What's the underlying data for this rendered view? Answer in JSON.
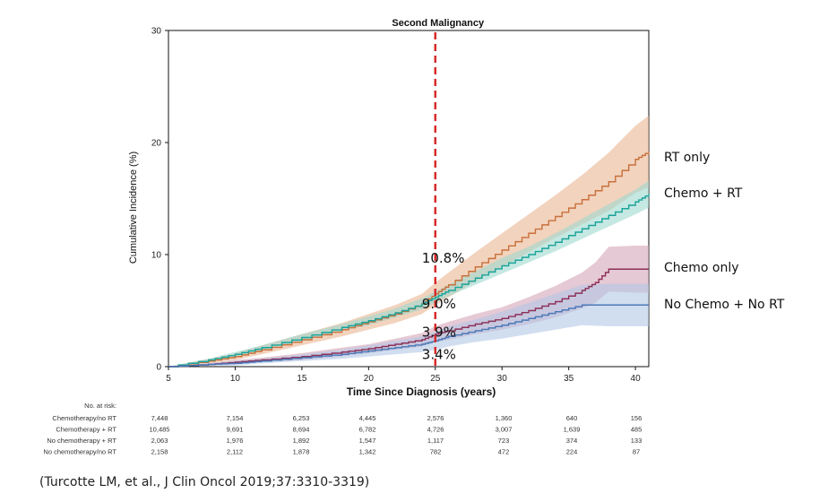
{
  "chart_data": {
    "type": "line",
    "title": "Second Malignancy",
    "xlabel": "Time Since Diagnosis (years)",
    "ylabel": "Cumulative Incidence (%)",
    "xlim": [
      5,
      41
    ],
    "ylim": [
      0,
      30
    ],
    "xticks": [
      5,
      10,
      15,
      20,
      25,
      30,
      35,
      40
    ],
    "yticks": [
      0,
      10,
      20,
      30
    ],
    "grid": false,
    "reference_line": {
      "x": 25,
      "color": "#d62b2b",
      "style": "dashed"
    },
    "series": [
      {
        "name": "RT only",
        "color": "#c8703a",
        "band_color": "#e9b593",
        "x": [
          5,
          8,
          10,
          12,
          15,
          18,
          20,
          22,
          24,
          25,
          26,
          28,
          30,
          32,
          34,
          36,
          38,
          40,
          41
        ],
        "y": [
          0,
          0.5,
          0.9,
          1.5,
          2.4,
          3.3,
          4.0,
          4.7,
          5.6,
          6.5,
          7.3,
          8.9,
          10.4,
          11.9,
          13.4,
          14.9,
          16.5,
          18.5,
          19.2
        ],
        "band_width": [
          0,
          0.2,
          0.3,
          0.4,
          0.5,
          0.6,
          0.7,
          0.8,
          0.9,
          1.0,
          1.1,
          1.3,
          1.5,
          1.7,
          1.9,
          2.2,
          2.6,
          3.0,
          3.2
        ]
      },
      {
        "name": "Chemo + RT",
        "color": "#1aa39a",
        "band_color": "#9fd9cf",
        "x": [
          5,
          8,
          10,
          12,
          15,
          18,
          20,
          22,
          24,
          25,
          26,
          28,
          30,
          32,
          34,
          36,
          38,
          40,
          41
        ],
        "y": [
          0,
          0.6,
          1.1,
          1.7,
          2.6,
          3.5,
          4.1,
          4.8,
          5.6,
          6.2,
          6.8,
          7.9,
          9.0,
          10.0,
          11.1,
          12.3,
          13.5,
          14.7,
          15.4
        ],
        "band_width": [
          0,
          0.1,
          0.2,
          0.2,
          0.3,
          0.3,
          0.4,
          0.4,
          0.5,
          0.5,
          0.5,
          0.6,
          0.7,
          0.7,
          0.8,
          0.9,
          1.0,
          1.1,
          1.2
        ]
      },
      {
        "name": "Chemo only",
        "color": "#8c3058",
        "band_color": "#d4a5b8",
        "x": [
          5,
          8,
          10,
          12,
          15,
          18,
          20,
          22,
          24,
          25,
          26,
          28,
          30,
          32,
          34,
          36,
          37,
          38,
          40,
          41
        ],
        "y": [
          0,
          0.2,
          0.4,
          0.6,
          0.9,
          1.3,
          1.6,
          2.0,
          2.4,
          2.9,
          3.2,
          3.8,
          4.3,
          5.0,
          5.8,
          6.8,
          7.5,
          8.7,
          8.7,
          8.7
        ],
        "band_width": [
          0,
          0.1,
          0.2,
          0.2,
          0.3,
          0.4,
          0.4,
          0.5,
          0.6,
          0.7,
          0.8,
          0.9,
          1.0,
          1.2,
          1.4,
          1.6,
          1.8,
          2.0,
          2.1,
          2.1
        ]
      },
      {
        "name": "No Chemo + No RT",
        "color": "#4a78b8",
        "band_color": "#b3c8e6",
        "x": [
          5,
          8,
          10,
          12,
          15,
          18,
          20,
          22,
          24,
          25,
          26,
          28,
          30,
          32,
          34,
          36,
          38,
          40,
          41
        ],
        "y": [
          0,
          0.2,
          0.3,
          0.5,
          0.8,
          1.1,
          1.4,
          1.7,
          2.0,
          2.3,
          2.7,
          3.2,
          3.7,
          4.3,
          4.9,
          5.5,
          5.5,
          5.5,
          5.5
        ],
        "band_width": [
          0,
          0.1,
          0.2,
          0.2,
          0.3,
          0.4,
          0.5,
          0.6,
          0.7,
          0.8,
          0.9,
          1.0,
          1.2,
          1.4,
          1.6,
          1.8,
          1.9,
          1.9,
          1.9
        ]
      }
    ],
    "annotations": [
      {
        "text": "10.8%",
        "x": 24.8,
        "y": 9.3
      },
      {
        "text": "9.0%",
        "x": 24.8,
        "y": 5.2
      },
      {
        "text": "3.9%",
        "x": 24.8,
        "y": 2.7
      },
      {
        "text": "3.4%",
        "x": 24.8,
        "y": 0.7
      }
    ],
    "legend_labels": [
      {
        "text": "RT only"
      },
      {
        "text": "Chemo + RT"
      },
      {
        "text": "Chemo only"
      },
      {
        "text": "No Chemo + No RT"
      }
    ],
    "risk_table": {
      "header": "No. at risk:",
      "rows": [
        {
          "label": "Chemotherapy/no RT",
          "values": [
            "7,448",
            "7,154",
            "6,253",
            "4,445",
            "2,576",
            "1,360",
            "640",
            "156"
          ]
        },
        {
          "label": "Chemotherapy + RT",
          "values": [
            "10,485",
            "9,691",
            "8,694",
            "6,782",
            "4,726",
            "3,007",
            "1,639",
            "485"
          ]
        },
        {
          "label": "No chemotherapy + RT",
          "values": [
            "2,063",
            "1,976",
            "1,892",
            "1,547",
            "1,117",
            "723",
            "374",
            "133"
          ]
        },
        {
          "label": "No chemotherapy/no RT",
          "values": [
            "2,158",
            "2,112",
            "1,878",
            "1,342",
            "782",
            "472",
            "224",
            "87"
          ]
        }
      ]
    }
  },
  "citation": "(Turcotte LM, et al., J Clin Oncol 2019;37:3310-3319)"
}
